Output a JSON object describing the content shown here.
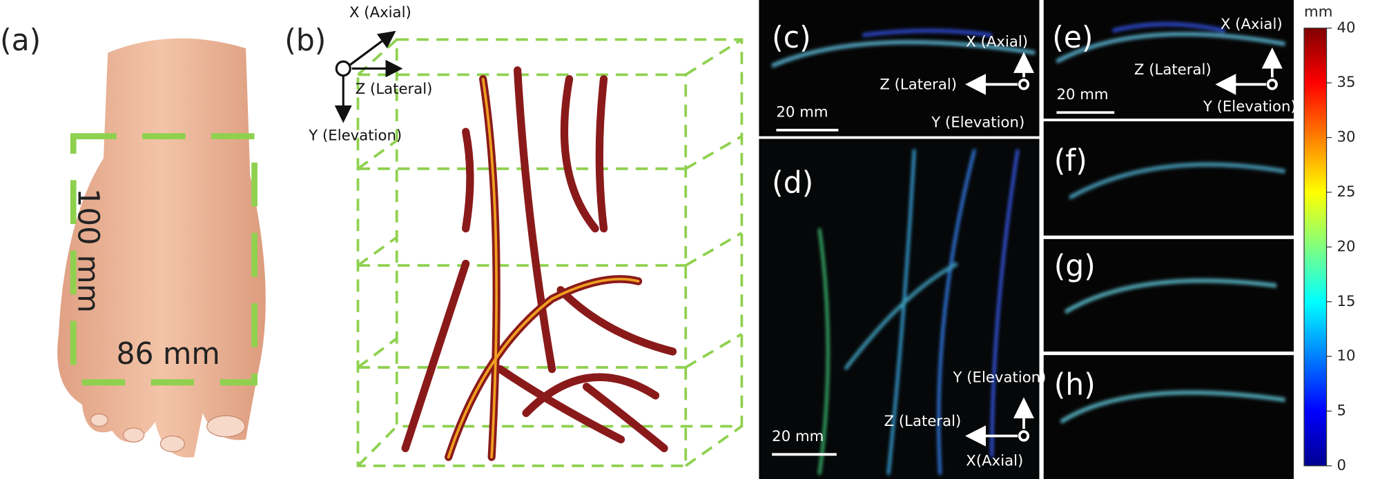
{
  "panels": {
    "a": {
      "label": "(a)",
      "height": "100 mm",
      "width": "86 mm"
    },
    "b": {
      "label": "(b)",
      "axes": {
        "x": "X (Axial)",
        "z": "Z (Lateral)",
        "y": "Y (Elevation)"
      }
    },
    "c": {
      "label": "(c)",
      "axes": {
        "x": "X (Axial)",
        "z": "Z (Lateral)",
        "y": "Y (Elevation)"
      },
      "scale": "20 mm"
    },
    "d": {
      "label": "(d)",
      "axes": {
        "y": "Y (Elevation)",
        "z": "Z (Lateral)",
        "x": "X(Axial)"
      },
      "scale": "20 mm"
    },
    "e": {
      "label": "(e)",
      "axes": {
        "x": "X (Axial)",
        "z": "Z (Lateral)",
        "y": "Y (Elevation)"
      },
      "scale": "20 mm"
    },
    "f": {
      "label": "(f)"
    },
    "g": {
      "label": "(g)"
    },
    "h": {
      "label": "(h)"
    }
  },
  "colorbar": {
    "unit": "mm",
    "lim": [
      0,
      40
    ],
    "ticks": [
      0,
      5,
      10,
      15,
      20,
      25,
      30,
      35,
      40
    ]
  }
}
